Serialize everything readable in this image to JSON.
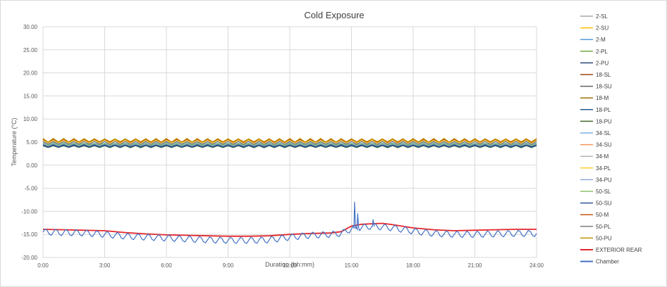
{
  "chart_data": {
    "type": "line",
    "title": "Cold Exposure",
    "xlabel": "Duration (hh:mm)",
    "ylabel": "Temperature (°C)",
    "xlim": [
      0,
      24
    ],
    "ylim": [
      -20,
      30
    ],
    "x_ticks": [
      "0:00",
      "3:00",
      "6:00",
      "9:00",
      "12:00",
      "15:00",
      "18:00",
      "21:00",
      "24:00"
    ],
    "y_ticks": [
      "30.00",
      "25.00",
      "20.00",
      "15.00",
      "10.00",
      "5.00",
      "0.00",
      "-5.00",
      "-10.00",
      "-15.00",
      "-20.00"
    ],
    "grid": "vertical and horizontal",
    "legend_position": "right",
    "x_unit": "hours",
    "series": [
      {
        "name": "2-SL",
        "color": "#a5a5a5",
        "base": 4.9,
        "amp": 0.3,
        "period": 0.5,
        "phase": 0.0
      },
      {
        "name": "2-SU",
        "color": "#ffc000",
        "base": 5.0,
        "amp": 0.3,
        "period": 0.5,
        "phase": 0.1
      },
      {
        "name": "2-M",
        "color": "#5b9bd5",
        "base": 4.6,
        "amp": 0.2,
        "period": 0.5,
        "phase": 0.2
      },
      {
        "name": "2-PL",
        "color": "#70ad47",
        "base": 4.4,
        "amp": 0.2,
        "period": 0.5,
        "phase": 0.3
      },
      {
        "name": "2-PU",
        "color": "#264478",
        "base": 4.3,
        "amp": 0.2,
        "period": 0.5,
        "phase": 0.4
      },
      {
        "name": "18-SL",
        "color": "#9e480e",
        "base": 5.2,
        "amp": 0.35,
        "period": 0.5,
        "phase": 0.0
      },
      {
        "name": "18-SU",
        "color": "#636363",
        "base": 4.9,
        "amp": 0.3,
        "period": 0.5,
        "phase": 0.15
      },
      {
        "name": "18-M",
        "color": "#997300",
        "base": 5.3,
        "amp": 0.35,
        "period": 0.5,
        "phase": 0.25
      },
      {
        "name": "18-PL",
        "color": "#255e91",
        "base": 4.2,
        "amp": 0.2,
        "period": 0.5,
        "phase": 0.05
      },
      {
        "name": "18-PU",
        "color": "#43682b",
        "base": 4.0,
        "amp": 0.2,
        "period": 0.5,
        "phase": 0.35
      },
      {
        "name": "34-SL",
        "color": "#7cafdd",
        "base": 4.5,
        "amp": 0.2,
        "period": 0.5,
        "phase": 0.1
      },
      {
        "name": "34-SU",
        "color": "#f1975a",
        "base": 5.4,
        "amp": 0.35,
        "period": 0.5,
        "phase": 0.2
      },
      {
        "name": "34-M",
        "color": "#b7b7b7",
        "base": 5.0,
        "amp": 0.3,
        "period": 0.5,
        "phase": 0.3
      },
      {
        "name": "34-PL",
        "color": "#ffcd33",
        "base": 5.1,
        "amp": 0.3,
        "period": 0.5,
        "phase": 0.4
      },
      {
        "name": "34-PU",
        "color": "#8faadc",
        "base": 4.4,
        "amp": 0.2,
        "period": 0.5,
        "phase": 0.0
      },
      {
        "name": "50-SL",
        "color": "#8cc168",
        "base": 4.5,
        "amp": 0.2,
        "period": 0.5,
        "phase": 0.12
      },
      {
        "name": "50-SU",
        "color": "#2f5597",
        "base": 4.1,
        "amp": 0.2,
        "period": 0.5,
        "phase": 0.22
      },
      {
        "name": "50-M",
        "color": "#c55a11",
        "base": 5.3,
        "amp": 0.35,
        "period": 0.5,
        "phase": 0.32
      },
      {
        "name": "50-PL",
        "color": "#7f7f7f",
        "base": 4.8,
        "amp": 0.3,
        "period": 0.5,
        "phase": 0.42
      },
      {
        "name": "50-PU",
        "color": "#bf9000",
        "base": 5.4,
        "amp": 0.35,
        "period": 0.5,
        "phase": 0.08
      },
      {
        "name": "EXTERIOR REAR",
        "color": "#e3262c",
        "x": [
          0,
          1,
          2,
          3,
          4,
          5,
          6,
          7,
          8,
          9,
          10,
          11,
          12,
          13,
          14,
          14.5,
          15,
          15.5,
          16,
          16.5,
          17,
          18,
          19,
          20,
          21,
          22,
          23,
          24
        ],
        "y": [
          -13.9,
          -14.0,
          -14.1,
          -14.2,
          -14.6,
          -14.9,
          -15.1,
          -15.2,
          -15.3,
          -15.4,
          -15.4,
          -15.3,
          -15.0,
          -14.8,
          -14.7,
          -14.4,
          -13.2,
          -12.8,
          -12.7,
          -12.6,
          -12.9,
          -13.6,
          -14.0,
          -14.2,
          -14.1,
          -14.0,
          -13.9,
          -13.9
        ],
        "width": 1.8
      },
      {
        "name": "Chamber",
        "color": "#4472c4",
        "base_x": [
          0,
          1,
          2,
          3,
          4,
          5,
          6,
          7,
          8,
          9,
          10,
          11,
          12,
          13,
          14,
          14.5,
          15,
          15.5,
          16,
          16.5,
          17,
          18,
          19,
          20,
          21,
          22,
          23,
          24
        ],
        "base_y": [
          -14.5,
          -14.6,
          -14.7,
          -15.0,
          -15.4,
          -15.6,
          -15.8,
          -16.0,
          -16.2,
          -16.3,
          -16.3,
          -16.2,
          -15.6,
          -15.2,
          -15.0,
          -14.8,
          -13.8,
          -13.5,
          -13.2,
          -13.4,
          -13.6,
          -14.3,
          -14.8,
          -15.0,
          -15.0,
          -14.9,
          -14.8,
          -14.8
        ],
        "amp": 0.7,
        "period": 0.5,
        "spikes": [
          {
            "x": 15.15,
            "y": -8.0
          },
          {
            "x": 15.3,
            "y": -10.5
          },
          {
            "x": 16.05,
            "y": -11.8
          }
        ],
        "width": 1.2
      }
    ]
  }
}
